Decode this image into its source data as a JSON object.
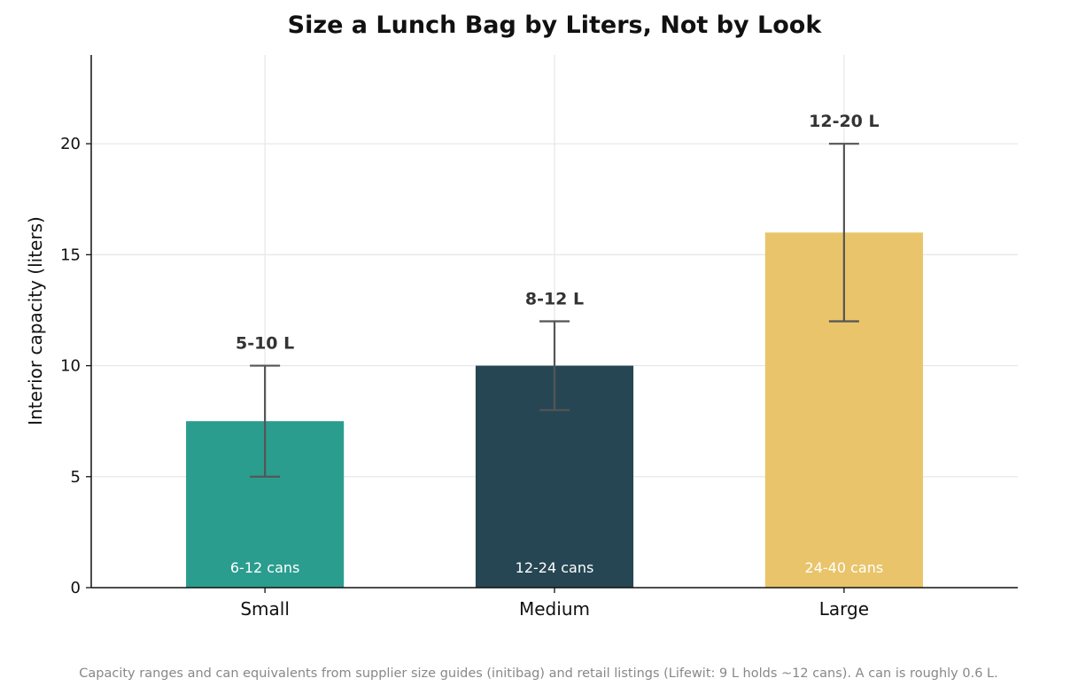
{
  "chart_data": {
    "type": "bar",
    "title": "Size a Lunch Bag by Liters, Not by Look",
    "ylabel": "Interior capacity (liters)",
    "xlabel": "",
    "categories": [
      "Small",
      "Medium",
      "Large"
    ],
    "values": [
      7.5,
      10,
      16
    ],
    "error_low": [
      5,
      8,
      12
    ],
    "error_high": [
      10,
      12,
      20
    ],
    "range_labels": [
      "5-10 L",
      "8-12 L",
      "12-20 L"
    ],
    "can_labels": [
      "6-12 cans",
      "12-24 cans",
      "24-40 cans"
    ],
    "colors": [
      "#2a9d8f",
      "#264653",
      "#e9c46a"
    ],
    "ylim": [
      0,
      24
    ],
    "yticks": [
      0,
      5,
      10,
      15,
      20
    ],
    "grid": true,
    "footnote": "Capacity ranges and can equivalents from supplier size guides (initibag) and retail listings (Lifewit: 9 L holds ~12 cans). A can is roughly 0.6 L."
  }
}
